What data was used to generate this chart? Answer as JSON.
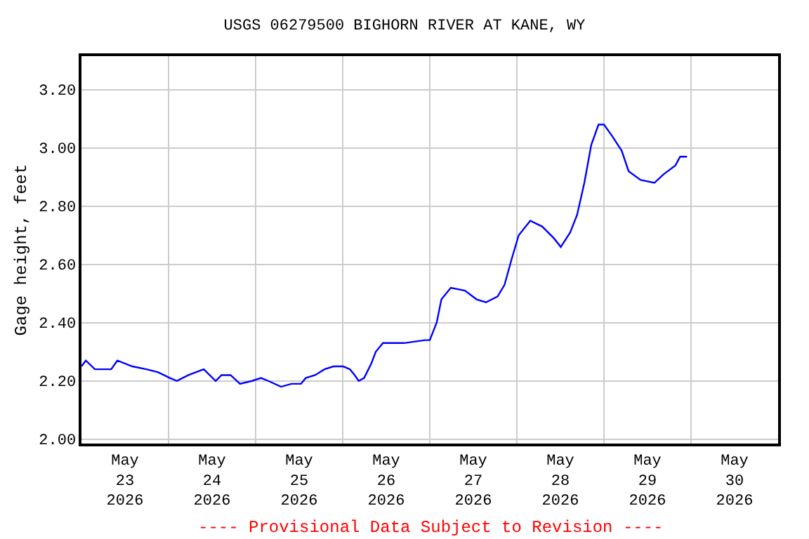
{
  "chart_data": {
    "type": "line",
    "title": "USGS 06279500 BIGHORN RIVER AT KANE, WY",
    "ylabel": "Gage height, feet",
    "annotations": [
      "---- Provisional Data Subject to Revision ----"
    ],
    "x": [
      "2026-05-23T00:00",
      "2026-05-23T01:12",
      "2026-05-23T03:42",
      "2026-05-23T05:42",
      "2026-05-23T08:12",
      "2026-05-23T09:54",
      "2026-05-23T14:00",
      "2026-05-23T17:54",
      "2026-05-23T21:06",
      "2026-05-24T00:24",
      "2026-05-24T02:18",
      "2026-05-24T05:30",
      "2026-05-24T09:42",
      "2026-05-24T13:00",
      "2026-05-24T14:36",
      "2026-05-24T17:06",
      "2026-05-24T19:42",
      "2026-05-24T23:00",
      "2026-05-25T01:30",
      "2026-05-25T03:30",
      "2026-05-25T07:00",
      "2026-05-25T09:54",
      "2026-05-25T12:30",
      "2026-05-25T13:48",
      "2026-05-25T16:24",
      "2026-05-25T19:00",
      "2026-05-25T21:30",
      "2026-05-26T00:06",
      "2026-05-26T02:00",
      "2026-05-26T03:18",
      "2026-05-26T04:24",
      "2026-05-26T05:54",
      "2026-05-26T07:54",
      "2026-05-26T09:06",
      "2026-05-26T11:06",
      "2026-05-26T16:54",
      "2026-05-26T22:42",
      "2026-05-27T00:00",
      "2026-05-27T01:54",
      "2026-05-27T03:12",
      "2026-05-27T05:48",
      "2026-05-27T09:42",
      "2026-05-27T12:54",
      "2026-05-27T15:30",
      "2026-05-27T18:42",
      "2026-05-27T20:36",
      "2026-05-27T22:36",
      "2026-05-28T00:30",
      "2026-05-28T03:42",
      "2026-05-28T07:00",
      "2026-05-28T10:12",
      "2026-05-28T12:06",
      "2026-05-28T14:42",
      "2026-05-28T16:36",
      "2026-05-28T18:36",
      "2026-05-28T20:30",
      "2026-05-28T22:30",
      "2026-05-29T00:00",
      "2026-05-29T02:18",
      "2026-05-29T04:54",
      "2026-05-29T06:48",
      "2026-05-29T10:06",
      "2026-05-29T13:54",
      "2026-05-29T16:30",
      "2026-05-29T19:42",
      "2026-05-29T21:00",
      "2026-05-29T22:54"
    ],
    "series": [
      {
        "color": "#0000ff",
        "values": [
          2.25,
          2.27,
          2.24,
          2.24,
          2.24,
          2.27,
          2.25,
          2.24,
          2.23,
          2.21,
          2.2,
          2.22,
          2.24,
          2.2,
          2.22,
          2.22,
          2.19,
          2.2,
          2.21,
          2.2,
          2.18,
          2.19,
          2.19,
          2.21,
          2.22,
          2.24,
          2.25,
          2.25,
          2.24,
          2.22,
          2.2,
          2.21,
          2.26,
          2.3,
          2.33,
          2.33,
          2.34,
          2.34,
          2.4,
          2.48,
          2.52,
          2.51,
          2.48,
          2.47,
          2.49,
          2.53,
          2.62,
          2.7,
          2.75,
          2.73,
          2.69,
          2.66,
          2.71,
          2.77,
          2.88,
          3.01,
          3.08,
          3.08,
          3.04,
          2.99,
          2.92,
          2.89,
          2.88,
          2.91,
          2.94,
          2.97,
          2.97
        ]
      }
    ],
    "xlim": [
      "2026-05-23T00:00",
      "2026-05-31T00:00"
    ],
    "xticks": [
      {
        "value": "2026-05-23T12:00",
        "label": "May\n23\n2026"
      },
      {
        "value": "2026-05-24T12:00",
        "label": "May\n24\n2026"
      },
      {
        "value": "2026-05-25T12:00",
        "label": "May\n25\n2026"
      },
      {
        "value": "2026-05-26T12:00",
        "label": "May\n26\n2026"
      },
      {
        "value": "2026-05-27T12:00",
        "label": "May\n27\n2026"
      },
      {
        "value": "2026-05-28T12:00",
        "label": "May\n28\n2026"
      },
      {
        "value": "2026-05-29T12:00",
        "label": "May\n29\n2026"
      },
      {
        "value": "2026-05-30T12:00",
        "label": "May\n30\n2026"
      },
      {
        "value": "2026-05-24T00:00",
        "label": null
      },
      {
        "value": "2026-05-25T00:00",
        "label": null
      },
      {
        "value": "2026-05-26T00:00",
        "label": null
      },
      {
        "value": "2026-05-27T00:00",
        "label": null
      },
      {
        "value": "2026-05-28T00:00",
        "label": null
      },
      {
        "value": "2026-05-29T00:00",
        "label": null
      },
      {
        "value": "2026-05-30T00:00",
        "label": null
      }
    ],
    "ylim": [
      1.985,
      3.315
    ],
    "yticks": [
      {
        "value": 2.0,
        "label": "2.00"
      },
      {
        "value": 2.2,
        "label": "2.20"
      },
      {
        "value": 2.4,
        "label": "2.40"
      },
      {
        "value": 2.6,
        "label": "2.60"
      },
      {
        "value": 2.8,
        "label": "2.80"
      },
      {
        "value": 3.0,
        "label": "3.00"
      },
      {
        "value": 3.2,
        "label": "3.20"
      }
    ],
    "grid": true
  }
}
